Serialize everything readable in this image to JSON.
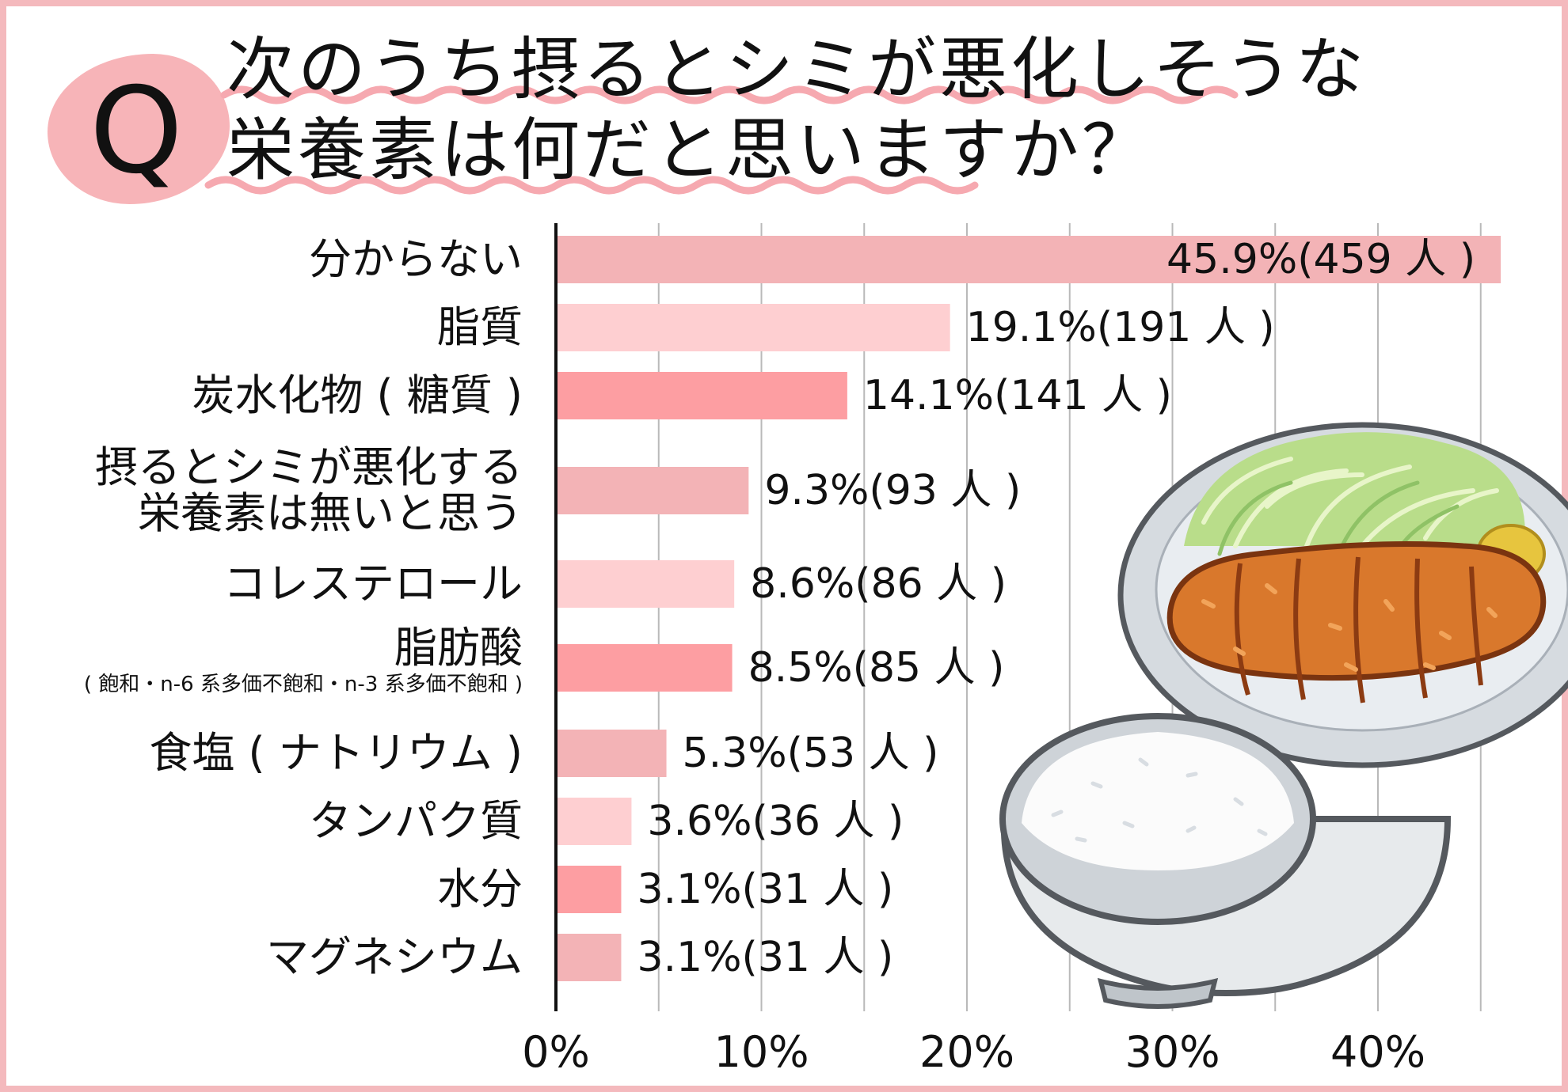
{
  "question": {
    "badge": "Q",
    "title_line1": "次のうち摂るとシミが悪化しそうな",
    "title_line2": "栄養素は何だと思いますか？"
  },
  "colors": {
    "frame": "#f4b9bd",
    "badge": "#f7b4b8",
    "wave": "#f6a9b0",
    "bar_shades": [
      "#f3b3b6",
      "#fecfd1",
      "#fd9ea2"
    ]
  },
  "chart_data": {
    "type": "bar",
    "orientation": "horizontal",
    "unit": "%",
    "xlim": [
      0,
      46
    ],
    "ticks": [
      {
        "value": 0,
        "label": "0%"
      },
      {
        "value": 10,
        "label": "10%"
      },
      {
        "value": 20,
        "label": "20%"
      },
      {
        "value": 30,
        "label": "30%"
      },
      {
        "value": 40,
        "label": "40%"
      }
    ],
    "grid": true,
    "categories": [
      {
        "label": "分からない",
        "value": 45.9,
        "count": 459,
        "value_label": "45.9%(459 人 )"
      },
      {
        "label": "脂質",
        "value": 19.1,
        "count": 191,
        "value_label": "19.1%(191 人 )"
      },
      {
        "label": "炭水化物 ( 糖質 )",
        "value": 14.1,
        "count": 141,
        "value_label": "14.1%(141 人 )"
      },
      {
        "label": "摂るとシミが悪化する",
        "label2": "栄養素は無いと思う",
        "value": 9.3,
        "count": 93,
        "value_label": "9.3%(93 人 )"
      },
      {
        "label": "コレステロール",
        "value": 8.6,
        "count": 86,
        "value_label": "8.6%(86 人 )"
      },
      {
        "label": "脂肪酸",
        "sublabel": "( 飽和・n-6 系多価不飽和・n-3 系多価不飽和 )",
        "value": 8.5,
        "count": 85,
        "value_label": "8.5%(85 人 )"
      },
      {
        "label": "食塩 ( ナトリウム )",
        "value": 5.3,
        "count": 53,
        "value_label": "5.3%(53 人 )"
      },
      {
        "label": "タンパク質",
        "value": 3.6,
        "count": 36,
        "value_label": "3.6%(36 人 )"
      },
      {
        "label": "水分",
        "value": 3.1,
        "count": 31,
        "value_label": "3.1%(31 人 )"
      },
      {
        "label": "マグネシウム",
        "value": 3.1,
        "count": 31,
        "value_label": "3.1%(31 人 )"
      }
    ]
  }
}
